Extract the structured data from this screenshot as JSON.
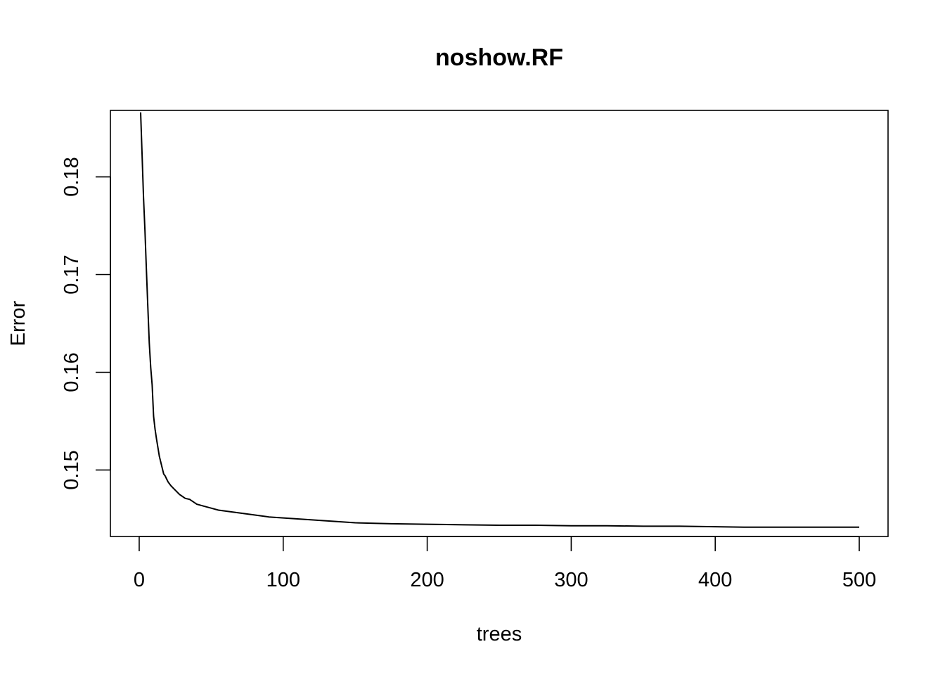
{
  "chart_data": {
    "type": "line",
    "title": "noshow.RF",
    "xlabel": "trees",
    "ylabel": "Error",
    "xlim": [
      -20,
      520
    ],
    "ylim": [
      0.1432,
      0.1868
    ],
    "xticks": [
      0,
      100,
      200,
      300,
      400,
      500
    ],
    "xtick_labels": [
      "0",
      "100",
      "200",
      "300",
      "400",
      "500"
    ],
    "yticks": [
      0.15,
      0.16,
      0.17,
      0.18
    ],
    "ytick_labels": [
      "0.15",
      "0.16",
      "0.17",
      "0.18"
    ],
    "grid": false,
    "legend": "none",
    "line_color": "#000000",
    "series": [
      {
        "x": [
          1,
          2,
          3,
          4,
          5,
          6,
          7,
          8,
          9,
          10,
          11,
          12,
          13,
          14,
          15,
          16,
          17,
          18,
          19,
          20,
          22,
          24,
          26,
          28,
          30,
          32,
          35,
          38,
          40,
          45,
          50,
          55,
          60,
          65,
          70,
          80,
          90,
          100,
          110,
          120,
          130,
          140,
          150,
          175,
          200,
          225,
          250,
          275,
          300,
          325,
          350,
          375,
          400,
          420,
          450,
          475,
          500
        ],
        "y": [
          0.1866,
          0.1823,
          0.1779,
          0.1745,
          0.1705,
          0.1667,
          0.163,
          0.1605,
          0.1587,
          0.1555,
          0.1542,
          0.1532,
          0.1523,
          0.1514,
          0.1508,
          0.1502,
          0.1496,
          0.1494,
          0.1491,
          0.1488,
          0.1484,
          0.1481,
          0.1478,
          0.1475,
          0.1473,
          0.1471,
          0.147,
          0.1467,
          0.1465,
          0.1463,
          0.1461,
          0.1459,
          0.1458,
          0.1457,
          0.1456,
          0.1454,
          0.1452,
          0.1451,
          0.145,
          0.1449,
          0.1448,
          0.1447,
          0.1446,
          0.1445,
          0.14445,
          0.1444,
          0.14435,
          0.14435,
          0.1443,
          0.1443,
          0.14425,
          0.14425,
          0.1442,
          0.14415,
          0.14415,
          0.14415,
          0.14415
        ]
      }
    ]
  }
}
